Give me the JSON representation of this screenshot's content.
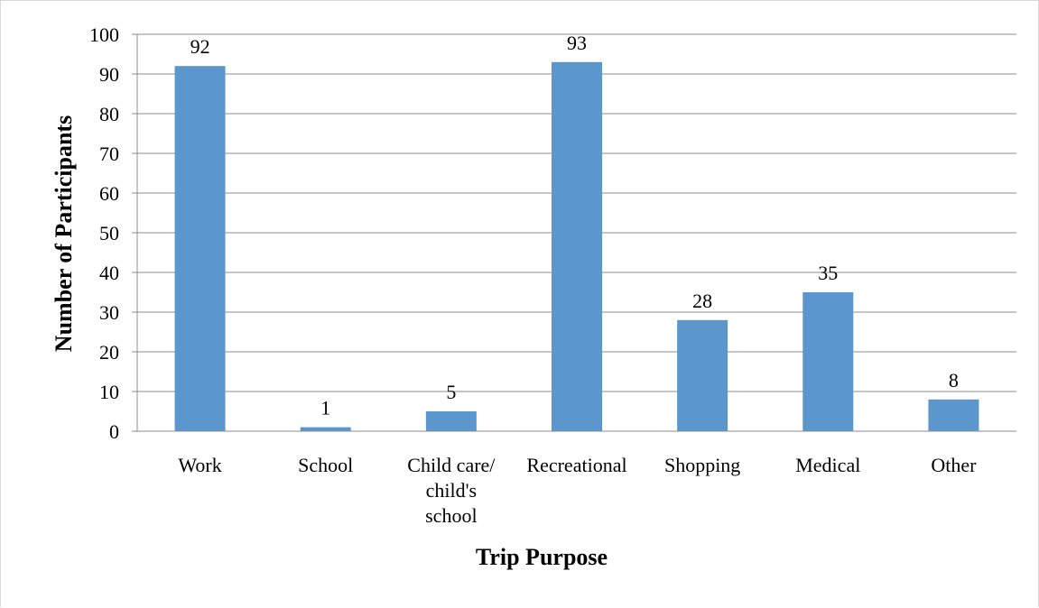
{
  "chart_data": {
    "type": "bar",
    "title": "",
    "xlabel": "Trip Purpose",
    "ylabel": "Number of Participants",
    "categories": [
      [
        "Work"
      ],
      [
        "School"
      ],
      [
        "Child care/",
        "child's",
        "school"
      ],
      [
        "Recreational"
      ],
      [
        "Shopping"
      ],
      [
        "Medical"
      ],
      [
        "Other"
      ]
    ],
    "values": [
      92,
      1,
      5,
      93,
      28,
      35,
      8
    ],
    "data_labels": [
      "92",
      "1",
      "5",
      "93",
      "28",
      "35",
      "8"
    ],
    "ylim": [
      0,
      100
    ],
    "yticks": [
      "0",
      "10",
      "20",
      "30",
      "40",
      "50",
      "60",
      "70",
      "80",
      "90",
      "100"
    ],
    "grid": true,
    "legend": "none",
    "bar_color": "#5b96cc"
  }
}
